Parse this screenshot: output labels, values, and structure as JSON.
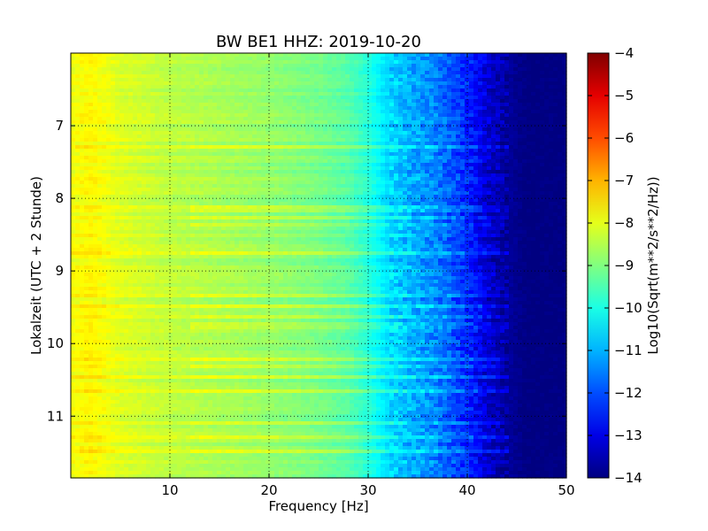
{
  "chart_data": {
    "type": "heatmap",
    "title": "BW BE1 HHZ: 2019-10-20",
    "xlabel": "Frequency [Hz]",
    "ylabel": "Lokalzeit (UTC + 2 Stunde)",
    "xlim": [
      0,
      50
    ],
    "ylim": [
      6.0,
      11.85
    ],
    "y_inverted": true,
    "x_ticks": [
      10,
      20,
      30,
      40,
      50
    ],
    "y_ticks": [
      7,
      8,
      9,
      10,
      11
    ],
    "grid": true,
    "colormap": "jet",
    "colorbar": {
      "label": "Log10(Sqrt(m**2/s**2/Hz))",
      "min": -14,
      "max": -4,
      "ticks": [
        -4,
        -5,
        -6,
        -7,
        -8,
        -9,
        -10,
        -11,
        -12,
        -13,
        -14
      ]
    },
    "frequency_profile": {
      "frequencies_hz": [
        0,
        2,
        5,
        10,
        15,
        20,
        25,
        28,
        30,
        32,
        34,
        36,
        38,
        40,
        42,
        44,
        46,
        50
      ],
      "log10_amplitude": [
        -7.9,
        -7.7,
        -8.1,
        -8.4,
        -8.6,
        -8.8,
        -9.1,
        -9.4,
        -9.9,
        -10.6,
        -11.0,
        -11.3,
        -11.8,
        -12.4,
        -13.2,
        -13.7,
        -14.0,
        -14.0
      ]
    },
    "high_noise_times": [
      7.3,
      8.15,
      8.25,
      8.35,
      8.75,
      9.35,
      9.5,
      9.65,
      9.75,
      10.2,
      10.3,
      10.45,
      10.65,
      11.1,
      11.3,
      11.5
    ]
  }
}
